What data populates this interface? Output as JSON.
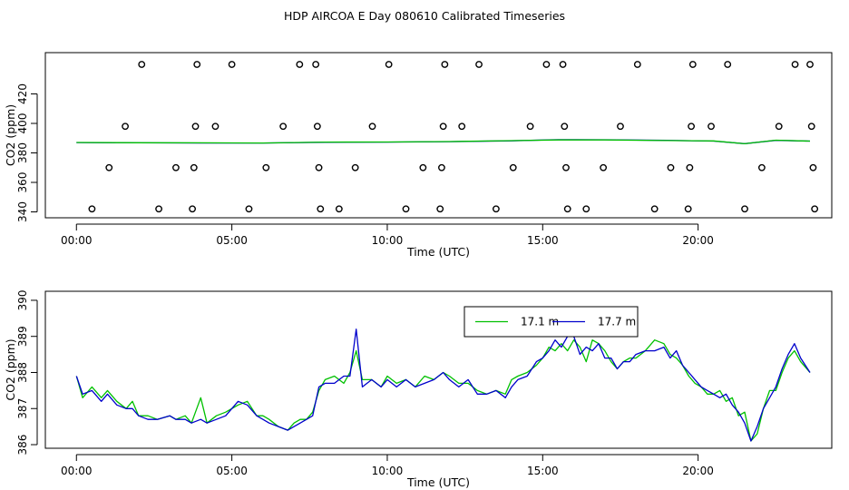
{
  "page": {
    "title": "HDP AIRCOA E  Day 080610  Calibrated Timeseries"
  },
  "colors": {
    "series_green": "#00c000",
    "series_blue": "#0000cc",
    "axis": "#000000"
  },
  "chart_data": [
    {
      "type": "line",
      "panel": "top",
      "xlabel": "Time (UTC)",
      "ylabel": "CO2 (ppm)",
      "xlim": [
        -1,
        24.3
      ],
      "ylim": [
        336,
        448
      ],
      "x_ticks": [
        0,
        5,
        10,
        15,
        20
      ],
      "x_tick_labels": [
        "00:00",
        "05:00",
        "10:00",
        "15:00",
        "20:00"
      ],
      "y_ticks": [
        340,
        360,
        380,
        400,
        420
      ],
      "y_tick_labels": [
        "340",
        "360",
        "380",
        "400",
        "420"
      ],
      "grid": false,
      "series": [
        {
          "color": "#0000cc",
          "x": [
            0,
            2,
            4,
            6,
            8,
            10,
            12,
            14,
            15.5,
            17,
            19,
            20.5,
            21.5,
            22.5,
            23.6
          ],
          "values": [
            387.0,
            386.8,
            386.7,
            386.7,
            387.2,
            387.3,
            387.6,
            388.2,
            389.0,
            388.9,
            388.5,
            388.0,
            386.3,
            388.5,
            388.0
          ]
        },
        {
          "color": "#00c000",
          "x": [
            0,
            2,
            4,
            6,
            8,
            10,
            12,
            14,
            15.5,
            17,
            19,
            20.5,
            21.5,
            22.5,
            23.6
          ],
          "values": [
            387.1,
            386.9,
            386.8,
            386.7,
            387.3,
            387.4,
            387.7,
            388.3,
            388.8,
            388.8,
            388.4,
            388.1,
            386.2,
            388.6,
            388.0
          ]
        }
      ],
      "markers": {
        "shape": "circle",
        "points": [
          {
            "x": 0.5,
            "y": 342
          },
          {
            "x": 1.05,
            "y": 370
          },
          {
            "x": 1.57,
            "y": 398
          },
          {
            "x": 2.1,
            "y": 440
          },
          {
            "x": 2.65,
            "y": 342
          },
          {
            "x": 3.2,
            "y": 370
          },
          {
            "x": 3.73,
            "y": 342
          },
          {
            "x": 3.78,
            "y": 370
          },
          {
            "x": 3.83,
            "y": 398
          },
          {
            "x": 3.88,
            "y": 440
          },
          {
            "x": 4.47,
            "y": 398
          },
          {
            "x": 5.0,
            "y": 440
          },
          {
            "x": 5.55,
            "y": 342
          },
          {
            "x": 6.1,
            "y": 370
          },
          {
            "x": 6.65,
            "y": 398
          },
          {
            "x": 7.18,
            "y": 440
          },
          {
            "x": 7.7,
            "y": 440
          },
          {
            "x": 7.75,
            "y": 398
          },
          {
            "x": 7.8,
            "y": 370
          },
          {
            "x": 7.85,
            "y": 342
          },
          {
            "x": 8.45,
            "y": 342
          },
          {
            "x": 8.97,
            "y": 370
          },
          {
            "x": 9.52,
            "y": 398
          },
          {
            "x": 10.05,
            "y": 440
          },
          {
            "x": 10.6,
            "y": 342
          },
          {
            "x": 11.15,
            "y": 370
          },
          {
            "x": 11.7,
            "y": 342
          },
          {
            "x": 11.75,
            "y": 370
          },
          {
            "x": 11.8,
            "y": 398
          },
          {
            "x": 11.85,
            "y": 440
          },
          {
            "x": 12.4,
            "y": 398
          },
          {
            "x": 12.95,
            "y": 440
          },
          {
            "x": 13.5,
            "y": 342
          },
          {
            "x": 14.05,
            "y": 370
          },
          {
            "x": 14.6,
            "y": 398
          },
          {
            "x": 15.12,
            "y": 440
          },
          {
            "x": 15.65,
            "y": 440
          },
          {
            "x": 15.7,
            "y": 398
          },
          {
            "x": 15.75,
            "y": 370
          },
          {
            "x": 15.8,
            "y": 342
          },
          {
            "x": 16.4,
            "y": 342
          },
          {
            "x": 16.95,
            "y": 370
          },
          {
            "x": 17.5,
            "y": 398
          },
          {
            "x": 18.05,
            "y": 440
          },
          {
            "x": 18.6,
            "y": 342
          },
          {
            "x": 19.12,
            "y": 370
          },
          {
            "x": 19.68,
            "y": 342
          },
          {
            "x": 19.73,
            "y": 370
          },
          {
            "x": 19.78,
            "y": 398
          },
          {
            "x": 19.83,
            "y": 440
          },
          {
            "x": 20.42,
            "y": 398
          },
          {
            "x": 20.95,
            "y": 440
          },
          {
            "x": 21.5,
            "y": 342
          },
          {
            "x": 22.05,
            "y": 370
          },
          {
            "x": 22.6,
            "y": 398
          },
          {
            "x": 23.12,
            "y": 440
          },
          {
            "x": 23.6,
            "y": 440
          },
          {
            "x": 23.65,
            "y": 398
          },
          {
            "x": 23.7,
            "y": 370
          },
          {
            "x": 23.75,
            "y": 342
          }
        ]
      }
    },
    {
      "type": "line",
      "panel": "bottom",
      "xlabel": "Time (UTC)",
      "ylabel": "CO2 (ppm)",
      "xlim": [
        -1,
        24.3
      ],
      "ylim": [
        385.9,
        390.25
      ],
      "x_ticks": [
        0,
        5,
        10,
        15,
        20
      ],
      "x_tick_labels": [
        "00:00",
        "05:00",
        "10:00",
        "15:00",
        "20:00"
      ],
      "y_ticks": [
        386,
        387,
        388,
        389,
        390
      ],
      "y_tick_labels": [
        "386",
        "387",
        "388",
        "389",
        "390"
      ],
      "grid": false,
      "legend": {
        "placement": "top-right",
        "entries": [
          {
            "label": "17.1 m",
            "color": "#00c000"
          },
          {
            "label": "17.7 m",
            "color": "#0000cc"
          }
        ]
      },
      "series": [
        {
          "name": "17.1 m",
          "color": "#00c000",
          "x": [
            0,
            0.2,
            0.5,
            0.8,
            1.0,
            1.3,
            1.6,
            1.8,
            2.0,
            2.3,
            2.6,
            3.0,
            3.2,
            3.5,
            3.7,
            4.0,
            4.2,
            4.5,
            4.8,
            5.0,
            5.2,
            5.5,
            5.8,
            6.0,
            6.2,
            6.5,
            6.8,
            7.0,
            7.2,
            7.4,
            7.6,
            7.8,
            8.0,
            8.3,
            8.6,
            8.8,
            9.0,
            9.2,
            9.5,
            9.8,
            10.0,
            10.3,
            10.6,
            10.9,
            11.2,
            11.5,
            11.8,
            12.0,
            12.3,
            12.6,
            12.9,
            13.2,
            13.5,
            13.8,
            14.0,
            14.2,
            14.5,
            14.8,
            15.0,
            15.2,
            15.4,
            15.6,
            15.8,
            16.0,
            16.2,
            16.4,
            16.6,
            16.8,
            17.0,
            17.2,
            17.4,
            17.6,
            17.8,
            18.0,
            18.3,
            18.6,
            18.9,
            19.1,
            19.3,
            19.5,
            19.7,
            19.9,
            20.1,
            20.3,
            20.5,
            20.7,
            20.9,
            21.1,
            21.3,
            21.5,
            21.7,
            21.9,
            22.1,
            22.3,
            22.5,
            22.7,
            22.9,
            23.1,
            23.3,
            23.6
          ],
          "values": [
            387.9,
            387.3,
            387.6,
            387.3,
            387.5,
            387.2,
            387.0,
            387.2,
            386.8,
            386.8,
            386.7,
            386.8,
            386.7,
            386.8,
            386.6,
            387.3,
            386.6,
            386.8,
            386.9,
            387.0,
            387.1,
            387.2,
            386.8,
            386.8,
            386.7,
            386.5,
            386.4,
            386.6,
            386.7,
            386.7,
            386.9,
            387.5,
            387.8,
            387.9,
            387.7,
            388.0,
            388.6,
            387.8,
            387.8,
            387.6,
            387.9,
            387.7,
            387.8,
            387.6,
            387.9,
            387.8,
            388.0,
            387.9,
            387.7,
            387.7,
            387.5,
            387.4,
            387.5,
            387.4,
            387.8,
            387.9,
            388.0,
            388.2,
            388.4,
            388.7,
            388.6,
            388.8,
            388.6,
            388.9,
            388.7,
            388.3,
            388.9,
            388.8,
            388.6,
            388.3,
            388.1,
            388.3,
            388.4,
            388.4,
            388.6,
            388.9,
            388.8,
            388.5,
            388.4,
            388.2,
            387.9,
            387.7,
            387.6,
            387.4,
            387.4,
            387.5,
            387.2,
            387.3,
            386.8,
            386.9,
            386.1,
            386.3,
            387.0,
            387.5,
            387.5,
            388.0,
            388.4,
            388.6,
            388.3,
            388.0
          ]
        },
        {
          "name": "17.7 m",
          "color": "#0000cc",
          "x": [
            0,
            0.2,
            0.5,
            0.8,
            1.0,
            1.3,
            1.6,
            1.8,
            2.0,
            2.3,
            2.6,
            3.0,
            3.2,
            3.5,
            3.7,
            4.0,
            4.2,
            4.5,
            4.8,
            5.0,
            5.2,
            5.5,
            5.8,
            6.0,
            6.2,
            6.5,
            6.8,
            7.0,
            7.2,
            7.4,
            7.6,
            7.8,
            8.0,
            8.3,
            8.6,
            8.8,
            9.0,
            9.2,
            9.5,
            9.8,
            10.0,
            10.3,
            10.6,
            10.9,
            11.2,
            11.5,
            11.8,
            12.0,
            12.3,
            12.6,
            12.9,
            13.2,
            13.5,
            13.8,
            14.0,
            14.2,
            14.5,
            14.8,
            15.0,
            15.2,
            15.4,
            15.6,
            15.8,
            16.0,
            16.2,
            16.4,
            16.6,
            16.8,
            17.0,
            17.2,
            17.4,
            17.6,
            17.8,
            18.0,
            18.3,
            18.6,
            18.9,
            19.1,
            19.3,
            19.5,
            19.7,
            19.9,
            20.1,
            20.3,
            20.5,
            20.7,
            20.9,
            21.1,
            21.3,
            21.5,
            21.7,
            21.9,
            22.1,
            22.3,
            22.5,
            22.7,
            22.9,
            23.1,
            23.3,
            23.6
          ],
          "values": [
            387.9,
            387.4,
            387.5,
            387.2,
            387.4,
            387.1,
            387.0,
            387.0,
            386.8,
            386.7,
            386.7,
            386.8,
            386.7,
            386.7,
            386.6,
            386.7,
            386.6,
            386.7,
            386.8,
            387.0,
            387.2,
            387.1,
            386.8,
            386.7,
            386.6,
            386.5,
            386.4,
            386.5,
            386.6,
            386.7,
            386.8,
            387.6,
            387.7,
            387.7,
            387.9,
            387.9,
            389.2,
            387.6,
            387.8,
            387.6,
            387.8,
            387.6,
            387.8,
            387.6,
            387.7,
            387.8,
            388.0,
            387.8,
            387.6,
            387.8,
            387.4,
            387.4,
            387.5,
            387.3,
            387.6,
            387.8,
            387.9,
            388.3,
            388.4,
            388.6,
            388.9,
            388.7,
            389.0,
            389.0,
            388.5,
            388.7,
            388.6,
            388.8,
            388.4,
            388.4,
            388.1,
            388.3,
            388.3,
            388.5,
            388.6,
            388.6,
            388.7,
            388.4,
            388.6,
            388.2,
            388.0,
            387.8,
            387.6,
            387.5,
            387.4,
            387.3,
            387.4,
            387.1,
            386.9,
            386.6,
            386.1,
            386.5,
            387.0,
            387.3,
            387.6,
            388.1,
            388.5,
            388.8,
            388.4,
            388.0
          ]
        }
      ]
    }
  ]
}
